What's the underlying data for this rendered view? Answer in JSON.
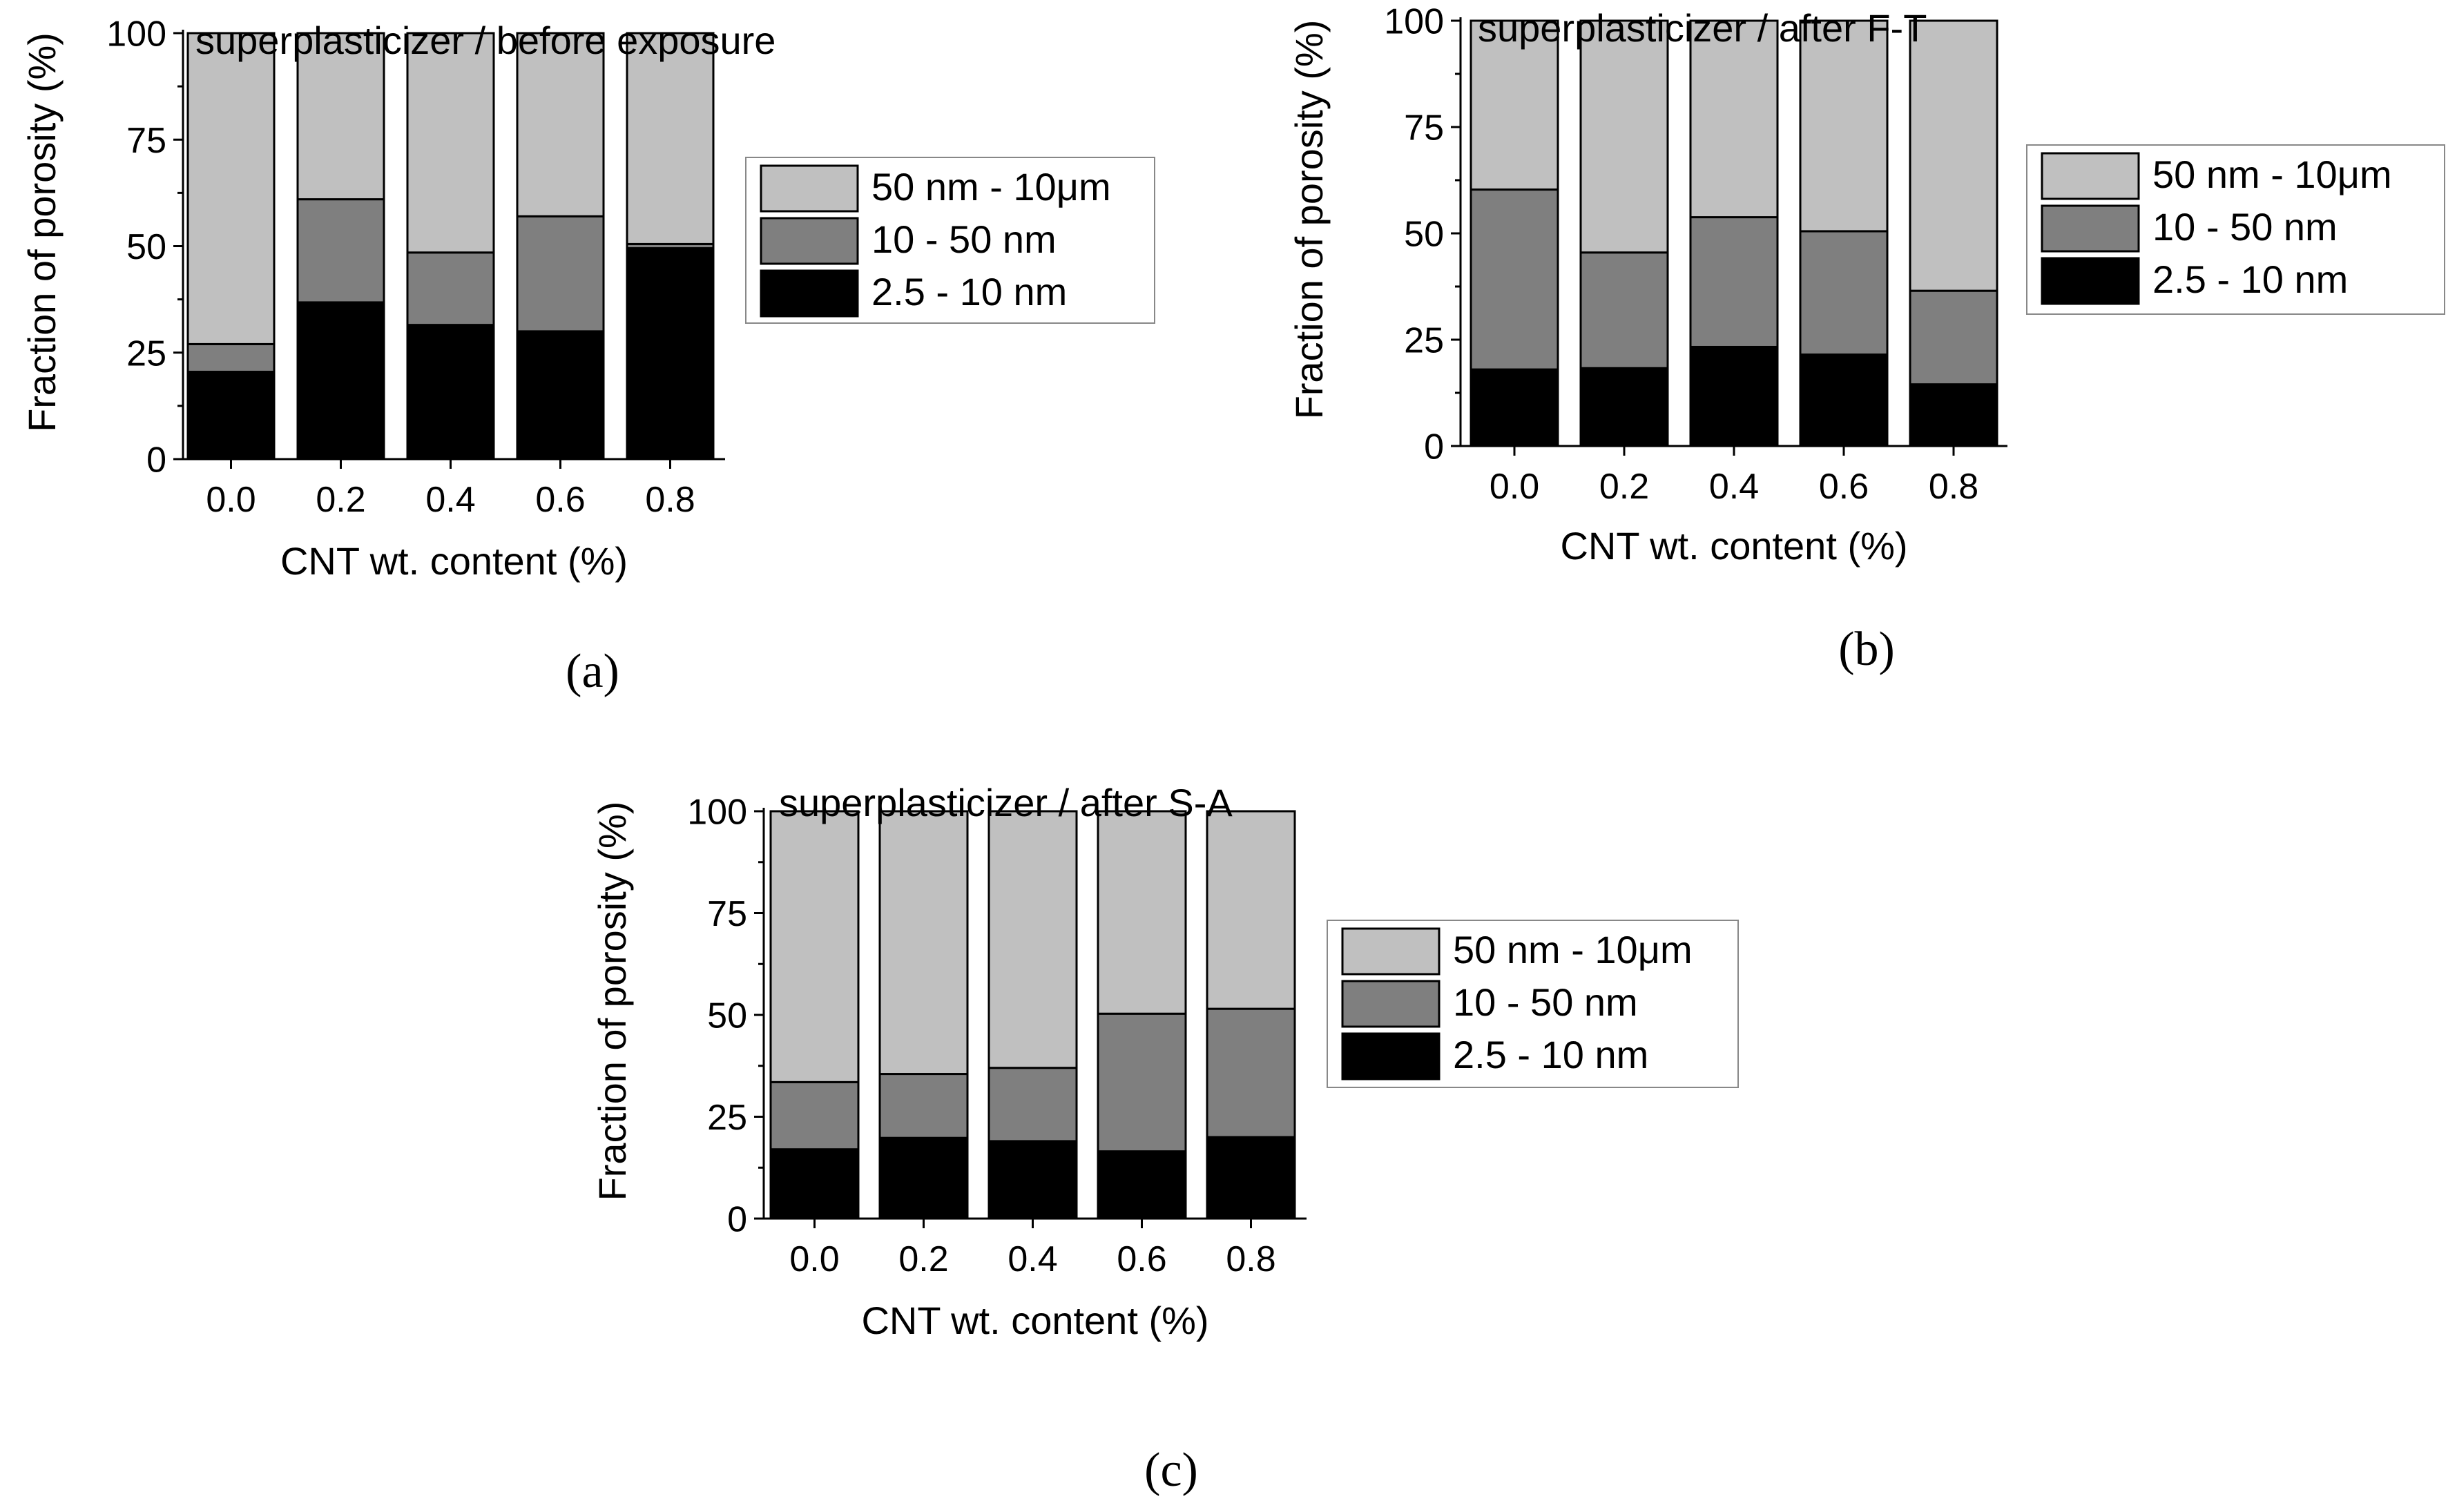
{
  "chart_data": [
    {
      "type": "bar",
      "stacked": true,
      "title": "superplasticizer / before exposure",
      "panel_label": "(a)",
      "xlabel": "CNT wt. content (%)",
      "ylabel": "Fraction of porosity (%)",
      "categories": [
        "0.0",
        "0.2",
        "0.4",
        "0.6",
        "0.8"
      ],
      "ylim": [
        0,
        100
      ],
      "yticks": [
        "0",
        "25",
        "50",
        "75",
        "100"
      ],
      "legend_position": "right",
      "series": [
        {
          "name": "2.5 - 10 nm",
          "color": "#000000",
          "values": [
            20.5,
            36.8,
            31.5,
            30.0,
            49.5
          ]
        },
        {
          "name": "10 - 50 nm",
          "color": "#7f7f7f",
          "values": [
            6.5,
            24.2,
            17.0,
            27.0,
            1.0
          ]
        },
        {
          "name": "50 nm - 10μm",
          "color": "#c0c0c0",
          "values": [
            73.0,
            39.0,
            51.5,
            43.0,
            49.5
          ]
        }
      ]
    },
    {
      "type": "bar",
      "stacked": true,
      "title": "superplasticizer / after F-T",
      "panel_label": "(b)",
      "xlabel": "CNT wt. content (%)",
      "ylabel": "Fraction of porosity (%)",
      "categories": [
        "0.0",
        "0.2",
        "0.4",
        "0.6",
        "0.8"
      ],
      "ylim": [
        0,
        100
      ],
      "yticks": [
        "0",
        "25",
        "50",
        "75",
        "100"
      ],
      "legend_position": "right",
      "series": [
        {
          "name": "2.5 - 10 nm",
          "color": "#000000",
          "values": [
            18.0,
            18.3,
            23.3,
            21.5,
            14.5
          ]
        },
        {
          "name": "10 - 50 nm",
          "color": "#7f7f7f",
          "values": [
            42.3,
            27.2,
            30.5,
            29.0,
            22.0
          ]
        },
        {
          "name": "50 nm - 10μm",
          "color": "#c0c0c0",
          "values": [
            39.7,
            54.5,
            46.2,
            49.5,
            63.5
          ]
        }
      ]
    },
    {
      "type": "bar",
      "stacked": true,
      "title": "superplasticizer / after S-A",
      "panel_label": "(c)",
      "xlabel": "CNT wt. content (%)",
      "ylabel": "Fraction of porosity (%)",
      "categories": [
        "0.0",
        "0.2",
        "0.4",
        "0.6",
        "0.8"
      ],
      "ylim": [
        0,
        100
      ],
      "yticks": [
        "0",
        "25",
        "50",
        "75",
        "100"
      ],
      "legend_position": "right",
      "series": [
        {
          "name": "2.5 - 10 nm",
          "color": "#000000",
          "values": [
            17.0,
            19.8,
            19.0,
            16.5,
            20.0
          ]
        },
        {
          "name": "10 - 50 nm",
          "color": "#7f7f7f",
          "values": [
            16.5,
            15.7,
            18.0,
            33.8,
            31.5
          ]
        },
        {
          "name": "50 nm - 10μm",
          "color": "#c0c0c0",
          "values": [
            66.5,
            64.5,
            63.0,
            49.7,
            48.5
          ]
        }
      ]
    }
  ]
}
